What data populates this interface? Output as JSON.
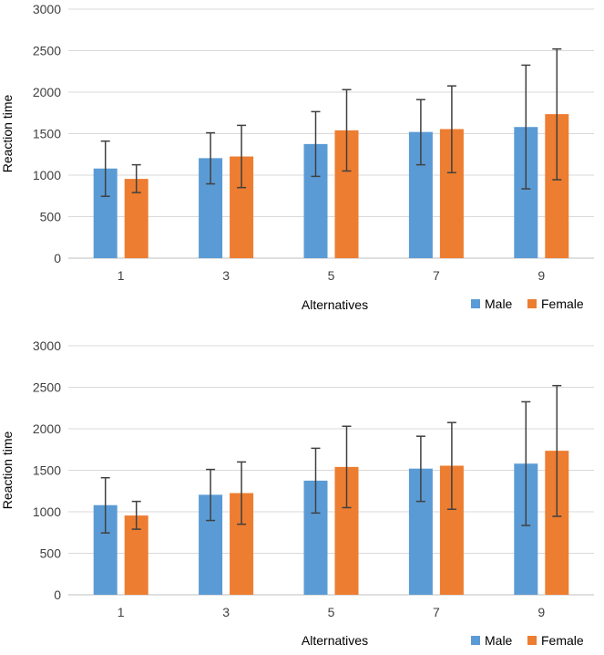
{
  "chart_data": [
    {
      "type": "bar",
      "categories": [
        "1",
        "3",
        "5",
        "7",
        "9"
      ],
      "series": [
        {
          "name": "Male",
          "color": "#5b9bd5",
          "values": [
            1080,
            1205,
            1375,
            1520,
            1580
          ],
          "error_low": [
            745,
            895,
            985,
            1125,
            835
          ],
          "error_high": [
            1410,
            1510,
            1765,
            1910,
            2325
          ]
        },
        {
          "name": "Female",
          "color": "#ed7d31",
          "values": [
            955,
            1225,
            1540,
            1555,
            1735
          ],
          "error_low": [
            790,
            850,
            1050,
            1030,
            945
          ],
          "error_high": [
            1125,
            1600,
            2030,
            2075,
            2520
          ]
        }
      ],
      "xlabel": "Alternatives",
      "ylabel": "Reaction time",
      "ylim": [
        0,
        3000
      ],
      "yticks": [
        0,
        500,
        1000,
        1500,
        2000,
        2500,
        3000
      ],
      "grid": true,
      "legend": "bottom-right"
    },
    {
      "type": "bar",
      "categories": [
        "1",
        "3",
        "5",
        "7",
        "9"
      ],
      "series": [
        {
          "name": "Male",
          "color": "#5b9bd5",
          "values": [
            1080,
            1205,
            1375,
            1520,
            1580
          ],
          "error_low": [
            745,
            895,
            985,
            1125,
            835
          ],
          "error_high": [
            1410,
            1510,
            1765,
            1910,
            2325
          ]
        },
        {
          "name": "Female",
          "color": "#ed7d31",
          "values": [
            955,
            1225,
            1540,
            1555,
            1735
          ],
          "error_low": [
            790,
            850,
            1050,
            1030,
            945
          ],
          "error_high": [
            1125,
            1600,
            2030,
            2075,
            2520
          ]
        }
      ],
      "xlabel": "Alternatives",
      "ylabel": "Reaction time",
      "ylim": [
        0,
        3000
      ],
      "yticks": [
        0,
        500,
        1000,
        1500,
        2000,
        2500,
        3000
      ],
      "grid": true,
      "legend": "bottom-right"
    }
  ]
}
